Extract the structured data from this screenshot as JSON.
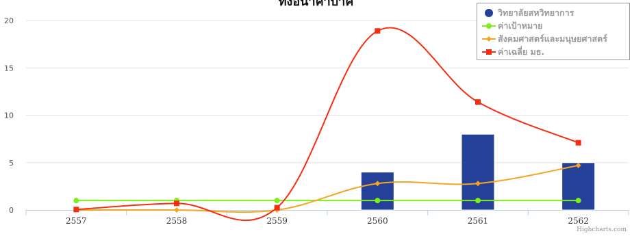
{
  "chart_data": {
    "type": "bar",
    "title": "ทั้งอนาคำบิาค",
    "categories": [
      "2557",
      "2558",
      "2559",
      "2560",
      "2561",
      "2562"
    ],
    "ylim": [
      0,
      20
    ],
    "yticks": [
      0,
      5,
      10,
      15,
      20
    ],
    "series": [
      {
        "name": "วิทยาลัยสหวิทยาการ",
        "type": "column",
        "color": "#254098",
        "values": [
          0,
          0,
          0,
          4,
          8,
          5
        ]
      },
      {
        "name": "ค่าเป้าหมาย",
        "type": "line",
        "color": "#7eed1b",
        "marker": "circle",
        "values": [
          1,
          1,
          1,
          1,
          1,
          1
        ]
      },
      {
        "name": "สังคมศาสตร์และมนุษยศาสตร์",
        "type": "line",
        "color": "#f4a622",
        "marker": "diamond",
        "values": [
          0,
          0,
          0,
          2.8,
          2.8,
          4.7
        ]
      },
      {
        "name": "ค่าเฉลี่ย มธ.",
        "type": "line",
        "color": "#f62d10",
        "marker": "square",
        "values": [
          0.05,
          0.7,
          0.25,
          18.9,
          11.4,
          7.1
        ]
      }
    ],
    "legend_position": "top-right",
    "grid": true,
    "credit": "Highcharts.com"
  }
}
